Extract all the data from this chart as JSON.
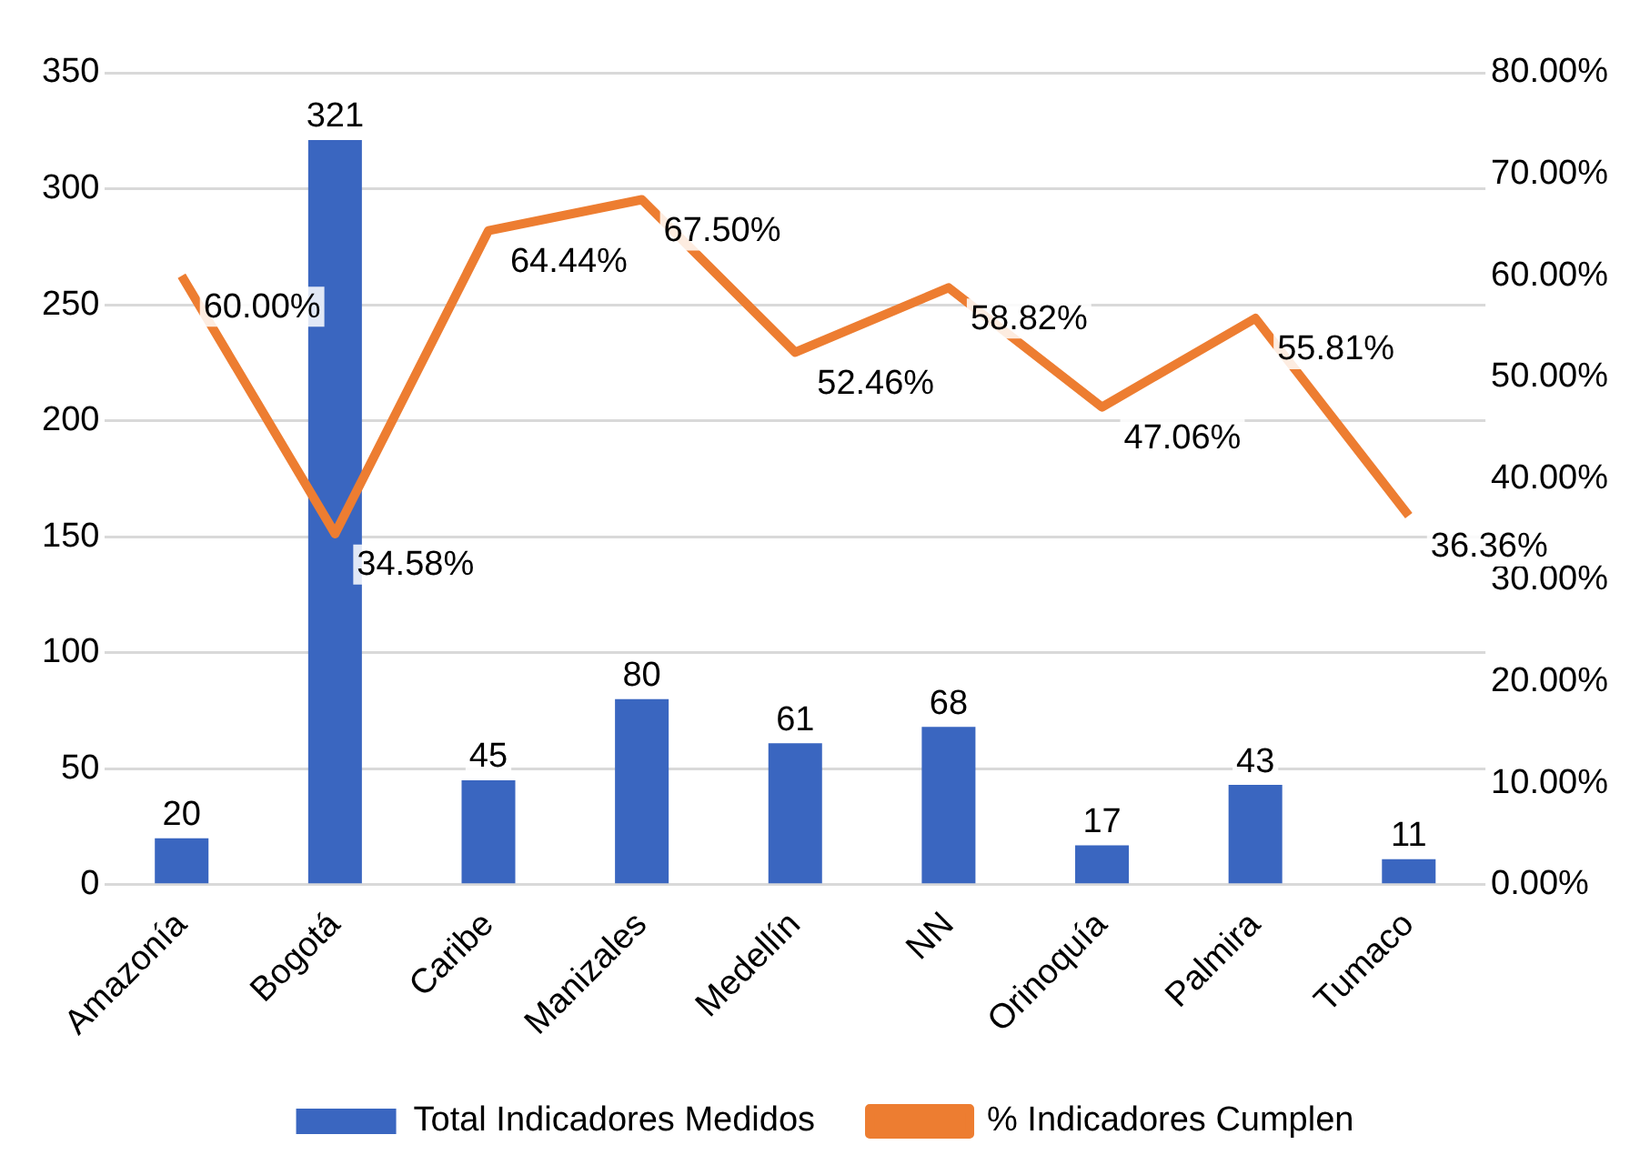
{
  "chart_data": {
    "type": "bar",
    "categories": [
      "Amazonía",
      "Bogotá",
      "Caribe",
      "Manizales",
      "Medellín",
      "NN",
      "Orinoquía",
      "Palmira",
      "Tumaco"
    ],
    "series": [
      {
        "name": "Total Indicadores Medidos",
        "color": "#3a66c0",
        "values": [
          20,
          321,
          45,
          80,
          61,
          68,
          17,
          43,
          11
        ]
      },
      {
        "name": "% Indicadores Cumplen",
        "type": "line",
        "axis": "y2",
        "color": "#ed7d31",
        "values": [
          60.0,
          34.58,
          64.44,
          67.5,
          52.46,
          58.82,
          47.06,
          55.81,
          36.36
        ],
        "value_labels": [
          "60.00%",
          "34.58%",
          "64.44%",
          "67.50%",
          "52.46%",
          "58.82%",
          "47.06%",
          "55.81%",
          "36.36%"
        ]
      }
    ],
    "ylim": [
      0,
      350
    ],
    "yticks": [
      0,
      50,
      100,
      150,
      200,
      250,
      300,
      350
    ],
    "y2lim": [
      0,
      80
    ],
    "y2ticks": [
      {
        "value": 0,
        "label": "0.00%"
      },
      {
        "value": 10,
        "label": "10.00%"
      },
      {
        "value": 20,
        "label": "20.00%"
      },
      {
        "value": 30,
        "label": "30.00%"
      },
      {
        "value": 40,
        "label": "40.00%"
      },
      {
        "value": 50,
        "label": "50.00%"
      },
      {
        "value": 60,
        "label": "60.00%"
      },
      {
        "value": 70,
        "label": "70.00%"
      },
      {
        "value": 80,
        "label": "80.00%"
      }
    ],
    "grid": "y",
    "legend": "bottom",
    "marker": "none",
    "data_labels": true
  }
}
